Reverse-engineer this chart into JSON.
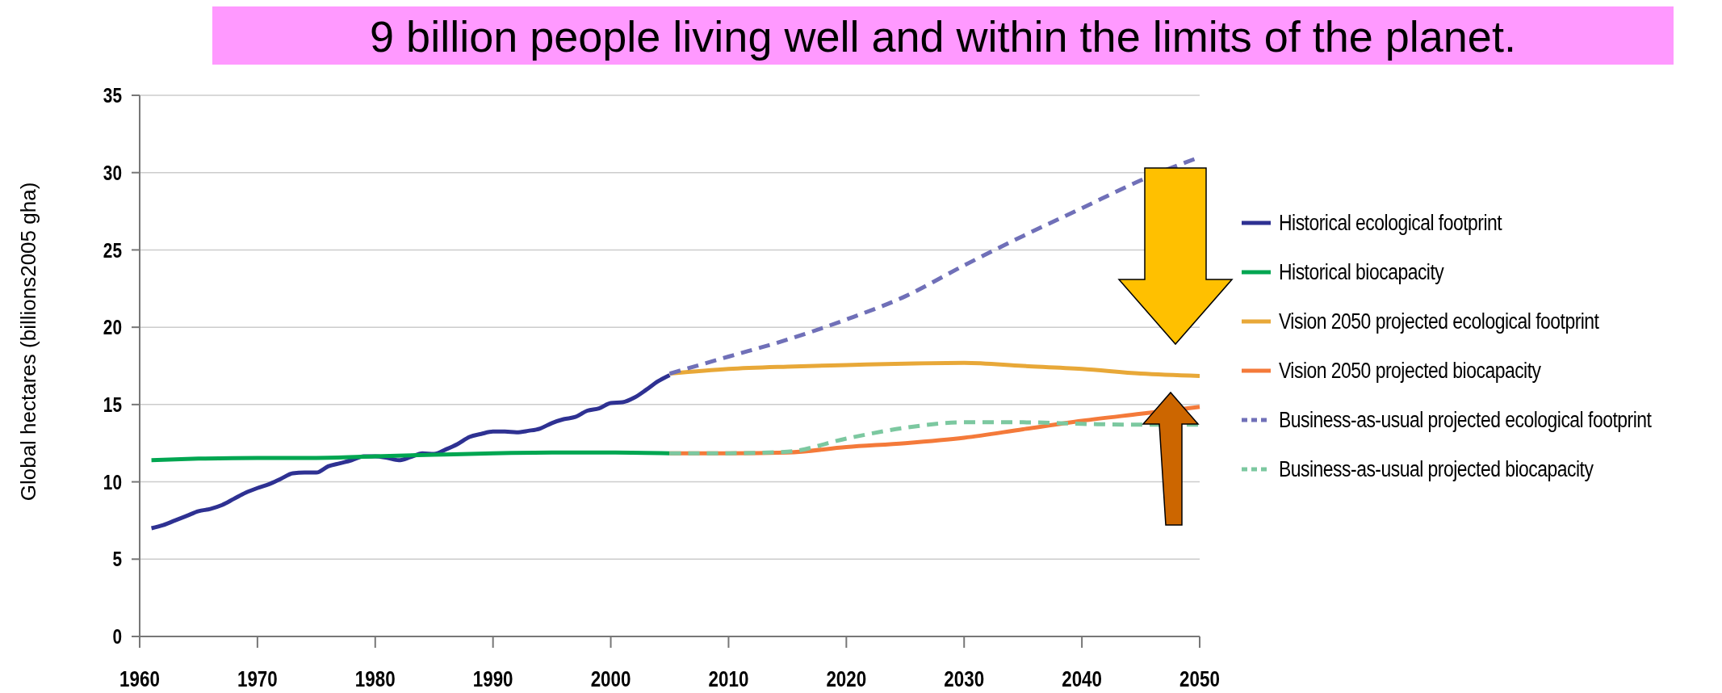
{
  "chart_data": {
    "type": "line",
    "title": "9 billion people living well and within the limits of the planet.",
    "ylabel": "Global hectares (billions2005 gha)",
    "xlim": [
      1960,
      2050
    ],
    "xticks": [
      1960,
      1970,
      1980,
      1990,
      2000,
      2010,
      2020,
      2030,
      2040,
      2050
    ],
    "ylim": [
      0,
      35
    ],
    "yticks": [
      0,
      5,
      10,
      15,
      20,
      25,
      30,
      35
    ],
    "grid": "y",
    "legend": "right",
    "series": [
      {
        "name": "Historical ecological footprint",
        "color": "#2e3192",
        "line_style": "solid",
        "x": [
          1961,
          1962,
          1963,
          1964,
          1965,
          1966,
          1967,
          1968,
          1969,
          1970,
          1971,
          1972,
          1973,
          1974,
          1975,
          1976,
          1977,
          1978,
          1979,
          1980,
          1981,
          1982,
          1983,
          1984,
          1985,
          1986,
          1987,
          1988,
          1989,
          1990,
          1991,
          1992,
          1993,
          1994,
          1995,
          1996,
          1997,
          1998,
          1999,
          2000,
          2001,
          2002,
          2003,
          2004,
          2005
        ],
        "values": [
          7.0,
          7.2,
          7.5,
          7.8,
          8.1,
          8.25,
          8.5,
          8.9,
          9.3,
          9.6,
          9.85,
          10.2,
          10.55,
          10.6,
          10.6,
          11.0,
          11.2,
          11.4,
          11.65,
          11.65,
          11.55,
          11.4,
          11.6,
          11.85,
          11.8,
          12.1,
          12.45,
          12.9,
          13.1,
          13.25,
          13.25,
          13.2,
          13.3,
          13.45,
          13.8,
          14.05,
          14.2,
          14.6,
          14.75,
          15.1,
          15.15,
          15.45,
          15.95,
          16.5,
          16.9
        ]
      },
      {
        "name": "Historical biocapacity",
        "color": "#00a651",
        "line_style": "solid",
        "x": [
          1961,
          1965,
          1970,
          1975,
          1980,
          1985,
          1990,
          1995,
          2000,
          2005
        ],
        "values": [
          11.4,
          11.5,
          11.55,
          11.55,
          11.65,
          11.75,
          11.85,
          11.9,
          11.9,
          11.85
        ]
      },
      {
        "name": "Vision 2050 projected ecological footprint",
        "color": "#e8a838",
        "line_style": "solid",
        "x": [
          2005,
          2010,
          2015,
          2020,
          2025,
          2030,
          2035,
          2040,
          2045,
          2050
        ],
        "values": [
          17.0,
          17.3,
          17.45,
          17.55,
          17.65,
          17.7,
          17.5,
          17.3,
          17.0,
          16.85
        ]
      },
      {
        "name": "Vision 2050 projected biocapacity",
        "color": "#f47a3a",
        "line_style": "solid",
        "x": [
          2005,
          2010,
          2015,
          2020,
          2025,
          2030,
          2035,
          2040,
          2045,
          2050
        ],
        "values": [
          11.85,
          11.85,
          11.9,
          12.25,
          12.5,
          12.85,
          13.4,
          13.95,
          14.4,
          14.85
        ]
      },
      {
        "name": "Business-as-usual projected ecological footprint",
        "color": "#7070b8",
        "line_style": "dashed",
        "x": [
          2005,
          2010,
          2015,
          2020,
          2025,
          2030,
          2035,
          2040,
          2045,
          2050
        ],
        "values": [
          17.0,
          18.1,
          19.2,
          20.5,
          22.0,
          24.0,
          25.9,
          27.7,
          29.5,
          31.0
        ]
      },
      {
        "name": "Business-as-usual projected biocapacity",
        "color": "#7cc8a0",
        "line_style": "dashed",
        "x": [
          2005,
          2010,
          2015,
          2020,
          2025,
          2030,
          2035,
          2040,
          2045,
          2050
        ],
        "values": [
          11.85,
          11.85,
          11.95,
          12.8,
          13.5,
          13.85,
          13.85,
          13.75,
          13.7,
          13.7
        ]
      }
    ]
  }
}
